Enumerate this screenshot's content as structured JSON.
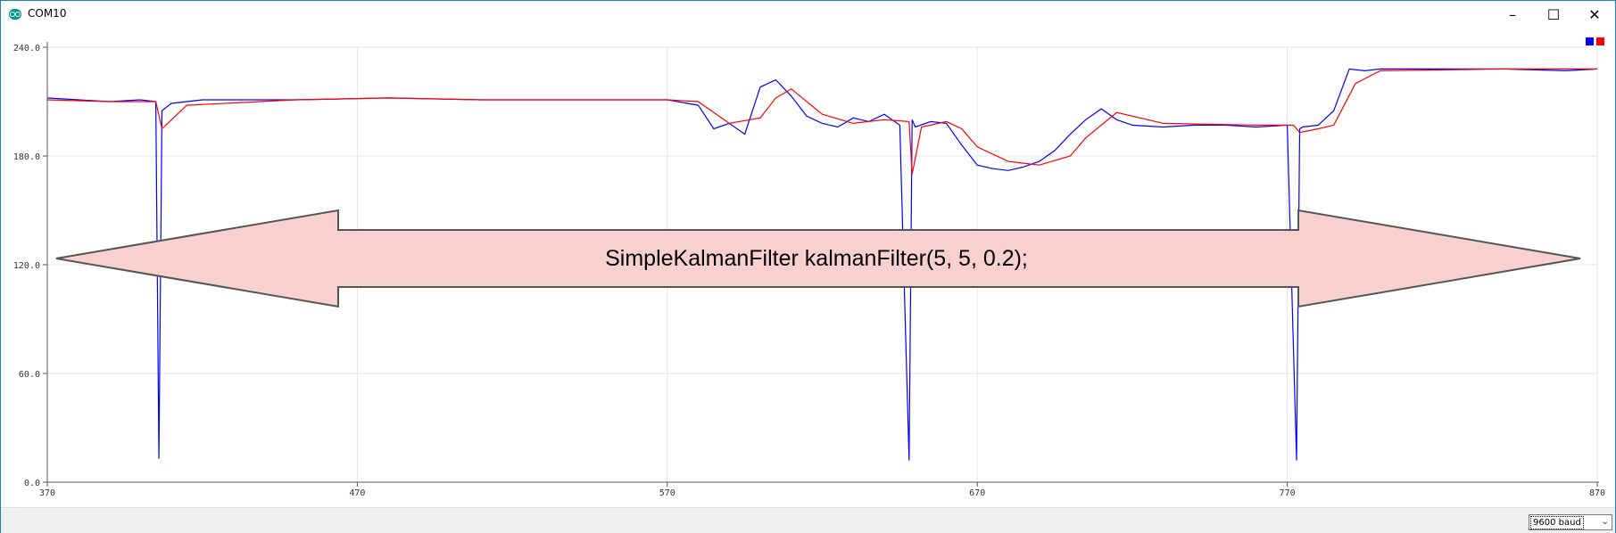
{
  "window": {
    "title": "COM10",
    "minimize_icon": "minimize-icon",
    "maximize_icon": "maximize-icon",
    "close_icon": "close-icon"
  },
  "annotation": {
    "text": "SimpleKalmanFilter kalmanFilter(5, 5, 0.2);",
    "fill": "#f8d0d0",
    "stroke": "#555555"
  },
  "statusbar": {
    "baud_selected": "9600 baud"
  },
  "legend": [
    {
      "color": "#0000ff"
    },
    {
      "color": "#ff0000"
    }
  ],
  "chart_data": {
    "type": "line",
    "xlim": [
      370,
      870
    ],
    "ylim": [
      0,
      240
    ],
    "x_ticks": [
      "370",
      "470",
      "570",
      "670",
      "770",
      "870"
    ],
    "y_ticks": [
      "0.0",
      "60.0",
      "120.0",
      "180.0",
      "240.0"
    ],
    "grid": true,
    "series": [
      {
        "color": "#0000ff",
        "x": [
          370,
          380,
          390,
          400,
          405,
          406,
          407,
          410,
          420,
          450,
          480,
          510,
          540,
          570,
          580,
          585,
          590,
          595,
          600,
          605,
          610,
          615,
          620,
          625,
          630,
          635,
          640,
          645,
          648,
          649,
          650,
          655,
          660,
          665,
          670,
          675,
          680,
          685,
          690,
          695,
          700,
          705,
          710,
          715,
          720,
          730,
          740,
          750,
          760,
          770,
          773,
          774,
          775,
          780,
          785,
          790,
          795,
          800,
          820,
          840,
          860,
          870
        ],
        "values": [
          212,
          211,
          210,
          211,
          210,
          13,
          205,
          209,
          211,
          211,
          212,
          211,
          211,
          211,
          208,
          195,
          198,
          192,
          218,
          222,
          213,
          202,
          198,
          196,
          201,
          199,
          203,
          197,
          12,
          200,
          196,
          199,
          198,
          186,
          175,
          173,
          172,
          174,
          177,
          183,
          192,
          200,
          206,
          200,
          197,
          196,
          197,
          197,
          196,
          197,
          12,
          195,
          196,
          197,
          205,
          228,
          227,
          228,
          228,
          228,
          227,
          228
        ]
      },
      {
        "color": "#ff0000",
        "x": [
          370,
          390,
          405,
          407,
          415,
          450,
          480,
          510,
          540,
          570,
          580,
          590,
          600,
          605,
          610,
          620,
          630,
          640,
          648,
          649,
          652,
          660,
          665,
          670,
          680,
          690,
          700,
          705,
          715,
          730,
          760,
          772,
          774,
          780,
          785,
          792,
          800,
          840,
          870
        ],
        "values": [
          211,
          210,
          210,
          195,
          208,
          211,
          212,
          211,
          211,
          211,
          210,
          198,
          201,
          212,
          217,
          203,
          198,
          200,
          199,
          170,
          196,
          199,
          195,
          185,
          177,
          175,
          180,
          190,
          204,
          198,
          197,
          197,
          193,
          195,
          197,
          220,
          227,
          228,
          228
        ]
      }
    ]
  }
}
